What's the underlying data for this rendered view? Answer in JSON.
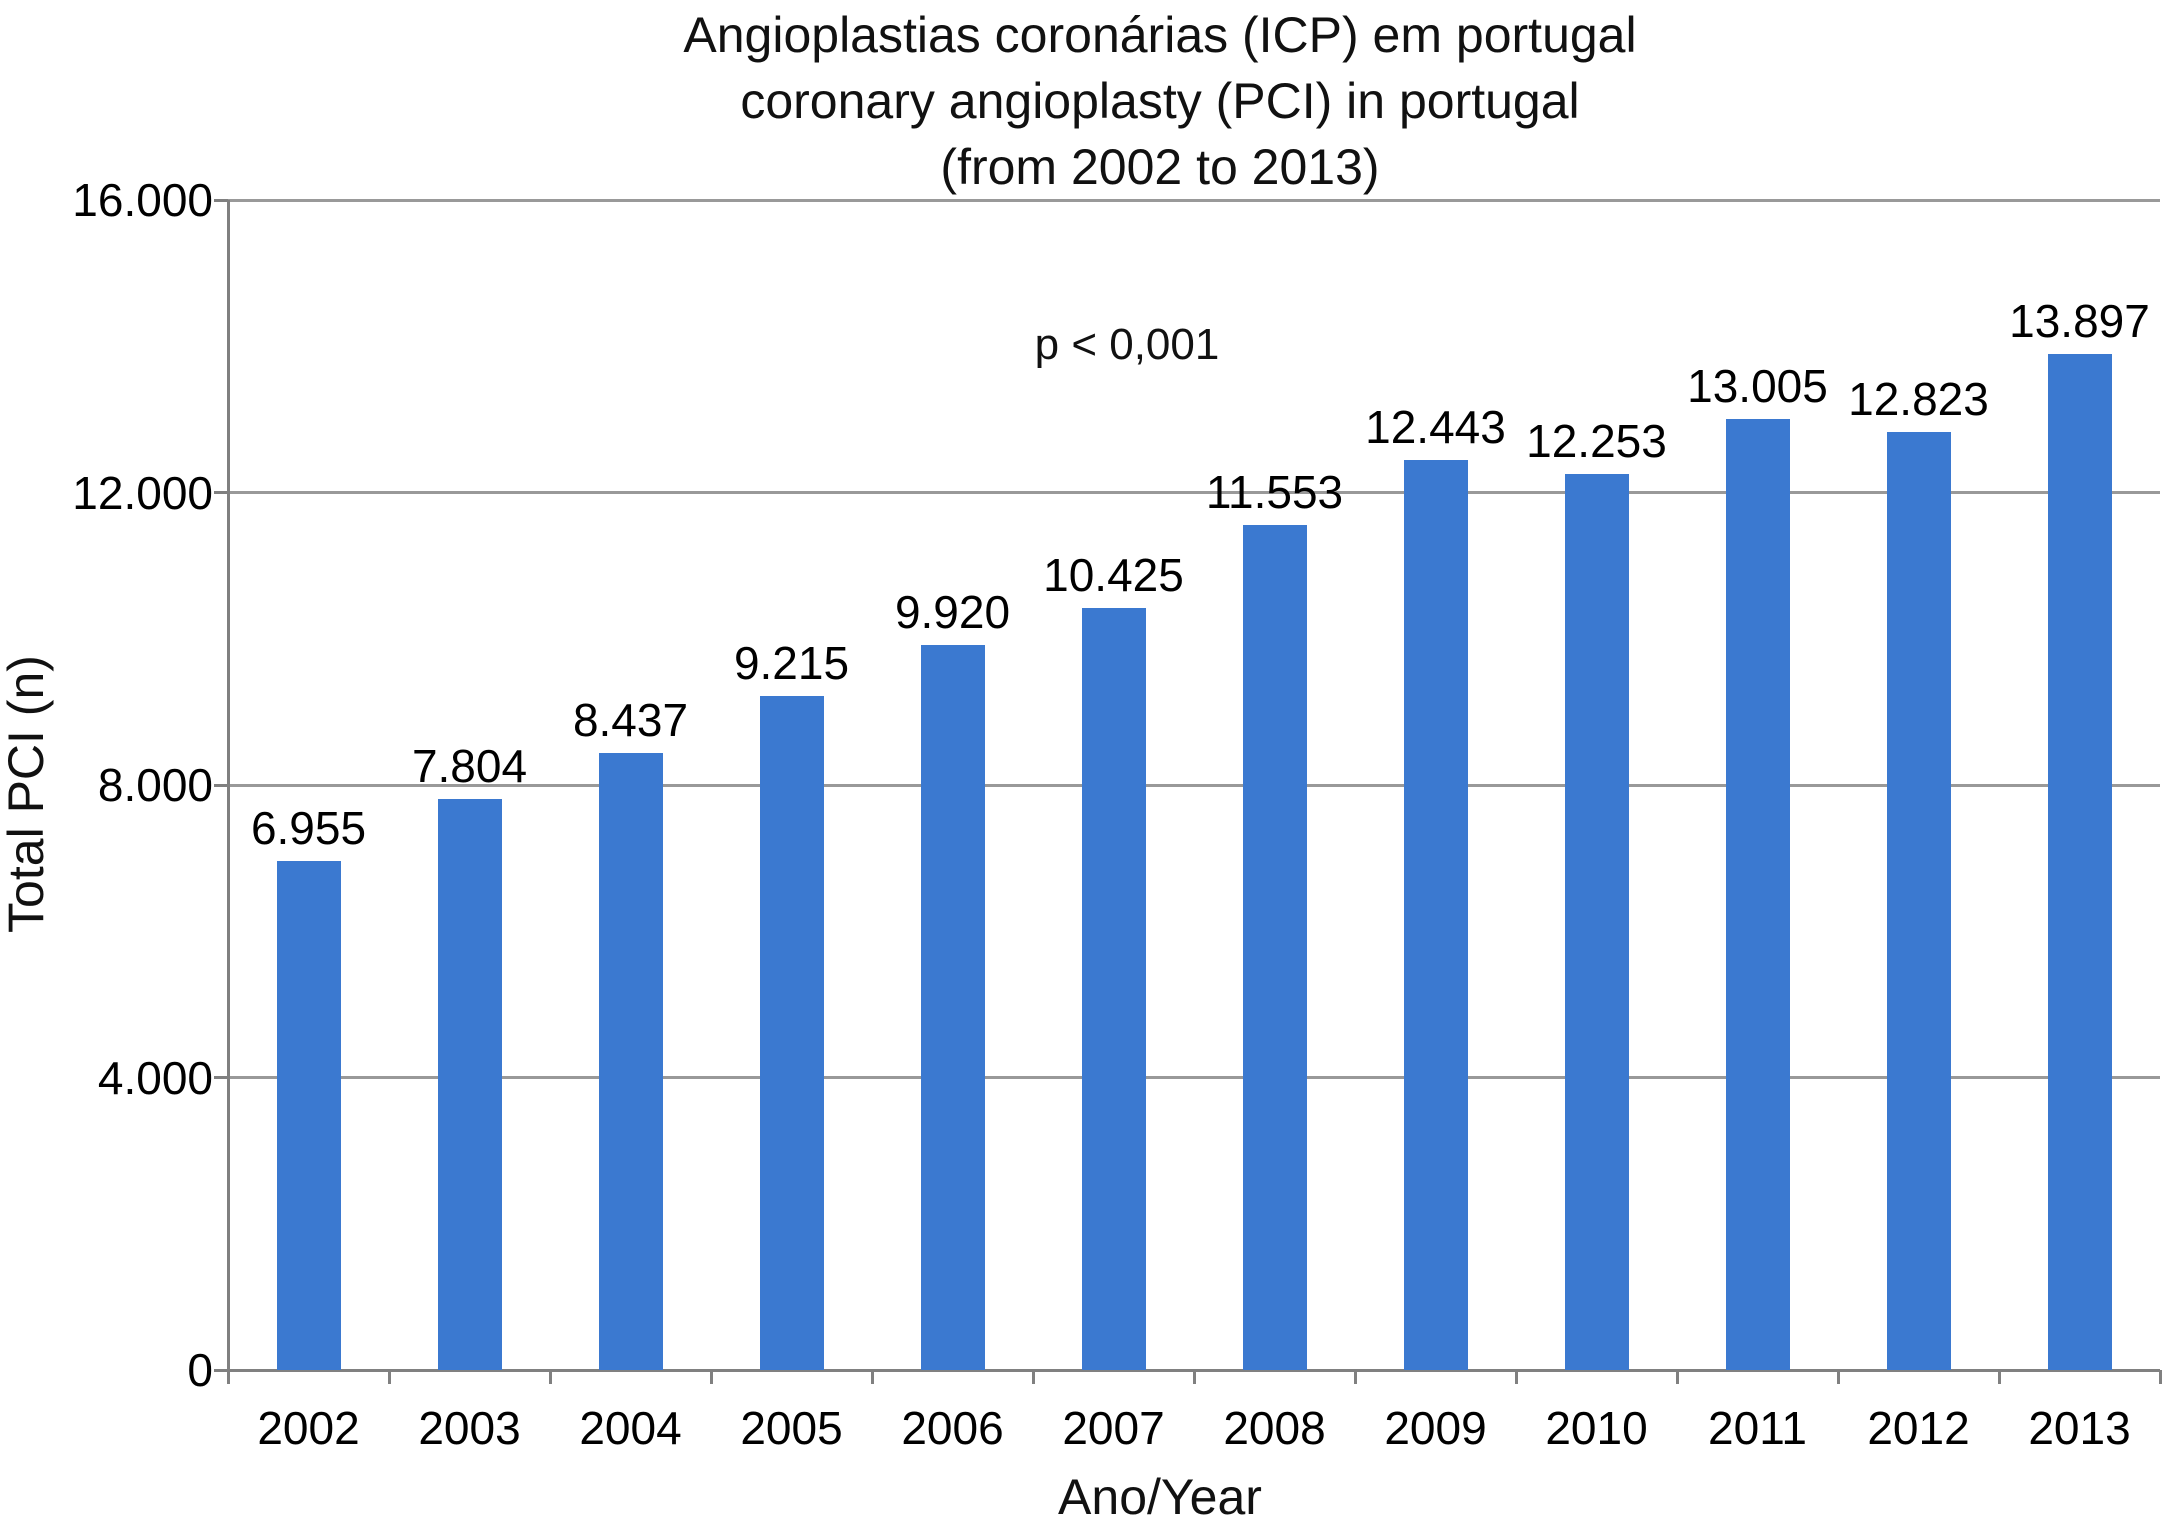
{
  "chart_data": {
    "type": "bar",
    "title_lines": [
      "Angioplastias coronárias (ICP) em portugal",
      "coronary angioplasty (PCI) in portugal",
      "(from 2002 to 2013)"
    ],
    "annotation": "p < 0,001",
    "categories": [
      "2002",
      "2003",
      "2004",
      "2005",
      "2006",
      "2007",
      "2008",
      "2009",
      "2010",
      "2011",
      "2012",
      "2013"
    ],
    "values": [
      6955,
      7804,
      8437,
      9215,
      9920,
      10425,
      11553,
      12443,
      12253,
      13005,
      12823,
      13897
    ],
    "value_labels": [
      "6.955",
      "7.804",
      "8.437",
      "9.215",
      "9.920",
      "10.425",
      "11.553",
      "12.443",
      "12.253",
      "13.005",
      "12.823",
      "13.897"
    ],
    "xlabel": "Ano/Year",
    "ylabel": "Total PCI (n)",
    "ylim": [
      0,
      16000
    ],
    "ytick_interval": 4000,
    "ytick_labels": [
      "0",
      "4.000",
      "8.000",
      "12.000",
      "16.000"
    ],
    "grid": true,
    "legend": "none",
    "bar_color": "#3b79d0",
    "grid_color": "#999999",
    "axis_color": "#808080",
    "background_color": "#ffffff",
    "text_color": "#000000"
  }
}
